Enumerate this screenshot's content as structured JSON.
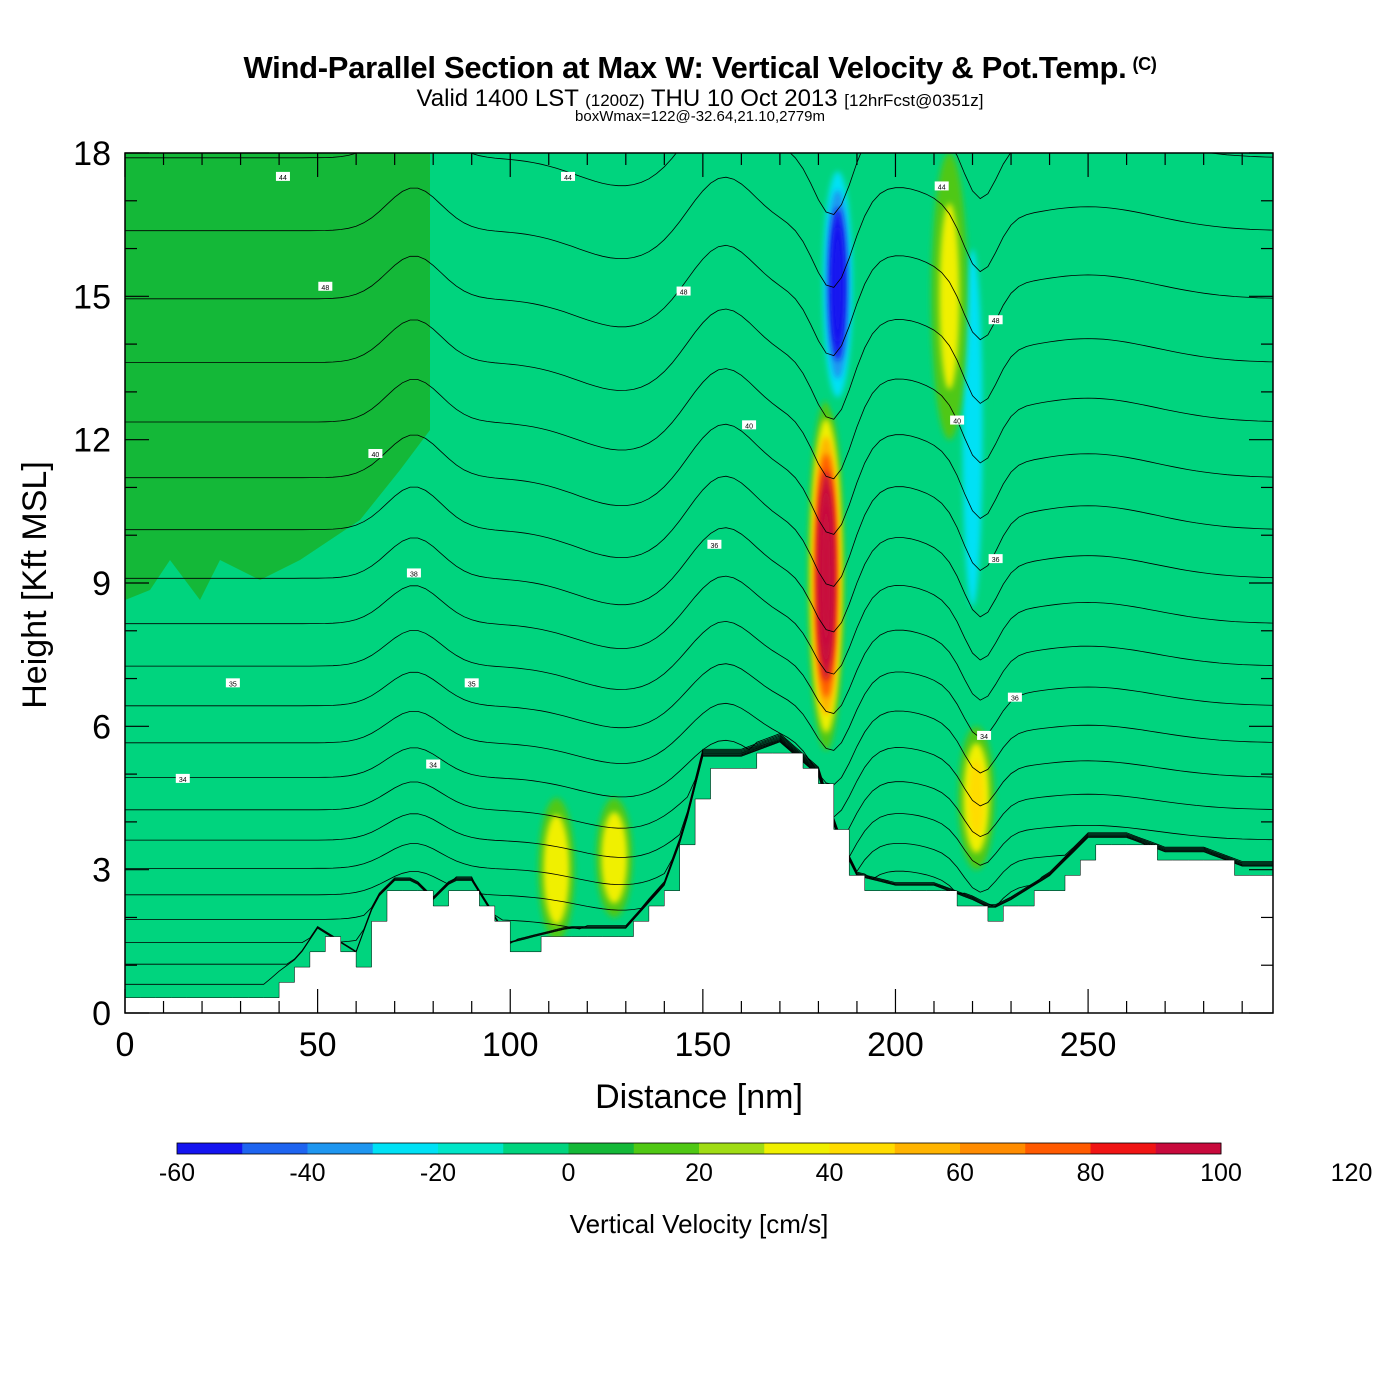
{
  "header": {
    "title": "Wind-Parallel Section at Max W: Vertical Velocity & Pot.Temp.",
    "copyright": "(C)",
    "valid_prefix": "Valid 1400 LST",
    "utc": "(1200Z)",
    "date": "THU 10 Oct 2013",
    "fcst": "[12hrFcst@0351z]",
    "box_wmax": "boxWmax=122@-32.64,21.10,2779m"
  },
  "chart_data": {
    "type": "heatmap",
    "title": "Wind-Parallel Section at Max W: Vertical Velocity & Pot.Temp.",
    "xlabel": "Distance [nm]",
    "ylabel": "Height [Kft MSL]",
    "xlim": [
      0,
      298
    ],
    "ylim": [
      0,
      18
    ],
    "x_ticks": [
      "0",
      "50",
      "100",
      "150",
      "200",
      "250"
    ],
    "y_ticks": [
      "0",
      "3",
      "6",
      "9",
      "12",
      "15",
      "18"
    ],
    "colorbar": {
      "label": "Vertical Velocity [cm/s]",
      "min": -60,
      "step": 10,
      "tick_labels": [
        "-60",
        "-40",
        "-20",
        "0",
        "20",
        "40",
        "60",
        "80",
        "100",
        "120"
      ],
      "colors": [
        "#1414f0",
        "#1e64f0",
        "#1e96f0",
        "#00e1f5",
        "#00e6c8",
        "#00d47e",
        "#14b838",
        "#50c814",
        "#a0dc14",
        "#f0f000",
        "#ffdc00",
        "#ffb400",
        "#ff8c00",
        "#ff5a00",
        "#f01414",
        "#c80a3c"
      ]
    },
    "terrain_kft": {
      "x": [
        0,
        35,
        40,
        45,
        50,
        60,
        65,
        70,
        75,
        80,
        85,
        90,
        100,
        115,
        130,
        140,
        145,
        150,
        155,
        160,
        170,
        180,
        185,
        190,
        200,
        210,
        220,
        225,
        230,
        240,
        250,
        260,
        270,
        280,
        290,
        298
      ],
      "height": [
        0.35,
        0.35,
        0.7,
        1.0,
        1.6,
        1.1,
        2.2,
        2.6,
        2.6,
        2.2,
        2.6,
        2.6,
        1.3,
        1.6,
        1.6,
        2.5,
        3.6,
        5.2,
        5.2,
        5.2,
        5.5,
        4.8,
        3.5,
        2.7,
        2.5,
        2.5,
        2.2,
        2.0,
        2.2,
        2.7,
        3.5,
        3.5,
        3.2,
        3.2,
        2.9,
        2.9
      ]
    },
    "vertical_velocity_features": [
      {
        "type": "updraft",
        "x": 182,
        "z_range": [
          5.5,
          12.8
        ],
        "max_w": 122
      },
      {
        "type": "downdraft",
        "x": 185,
        "z_range": [
          12.5,
          18
        ],
        "min_w": -60
      },
      {
        "type": "downdraft",
        "x": 220,
        "z_range": [
          6.5,
          18
        ],
        "min_w": -25
      },
      {
        "type": "updraft",
        "x": 214,
        "z_range": [
          12,
          18
        ],
        "max_w": 30
      },
      {
        "type": "updraft",
        "x": 221,
        "z_range": [
          3,
          6
        ],
        "max_w": 40
      },
      {
        "type": "updraft",
        "x": 112,
        "z_range": [
          1.5,
          4.5
        ],
        "max_w": 35
      },
      {
        "type": "updraft",
        "x": 127,
        "z_range": [
          2,
          4.5
        ],
        "max_w": 35
      }
    ],
    "potential_temperature_labels": [
      {
        "x": 41,
        "z": 17.5,
        "text": "44"
      },
      {
        "x": 115,
        "z": 17.5,
        "text": "44"
      },
      {
        "x": 212,
        "z": 17.3,
        "text": "44"
      },
      {
        "x": 52,
        "z": 15.2,
        "text": "48"
      },
      {
        "x": 145,
        "z": 15.1,
        "text": "48"
      },
      {
        "x": 226,
        "z": 14.5,
        "text": "48"
      },
      {
        "x": 65,
        "z": 11.7,
        "text": "40"
      },
      {
        "x": 162,
        "z": 12.3,
        "text": "40"
      },
      {
        "x": 216,
        "z": 12.4,
        "text": "40"
      },
      {
        "x": 75,
        "z": 9.2,
        "text": "38"
      },
      {
        "x": 153,
        "z": 9.8,
        "text": "36"
      },
      {
        "x": 226,
        "z": 9.5,
        "text": "36"
      },
      {
        "x": 28,
        "z": 6.9,
        "text": "35"
      },
      {
        "x": 90,
        "z": 6.9,
        "text": "35"
      },
      {
        "x": 231,
        "z": 6.6,
        "text": "36"
      },
      {
        "x": 15,
        "z": 4.9,
        "text": "34"
      },
      {
        "x": 80,
        "z": 5.2,
        "text": "34"
      },
      {
        "x": 223,
        "z": 5.8,
        "text": "34"
      }
    ]
  }
}
